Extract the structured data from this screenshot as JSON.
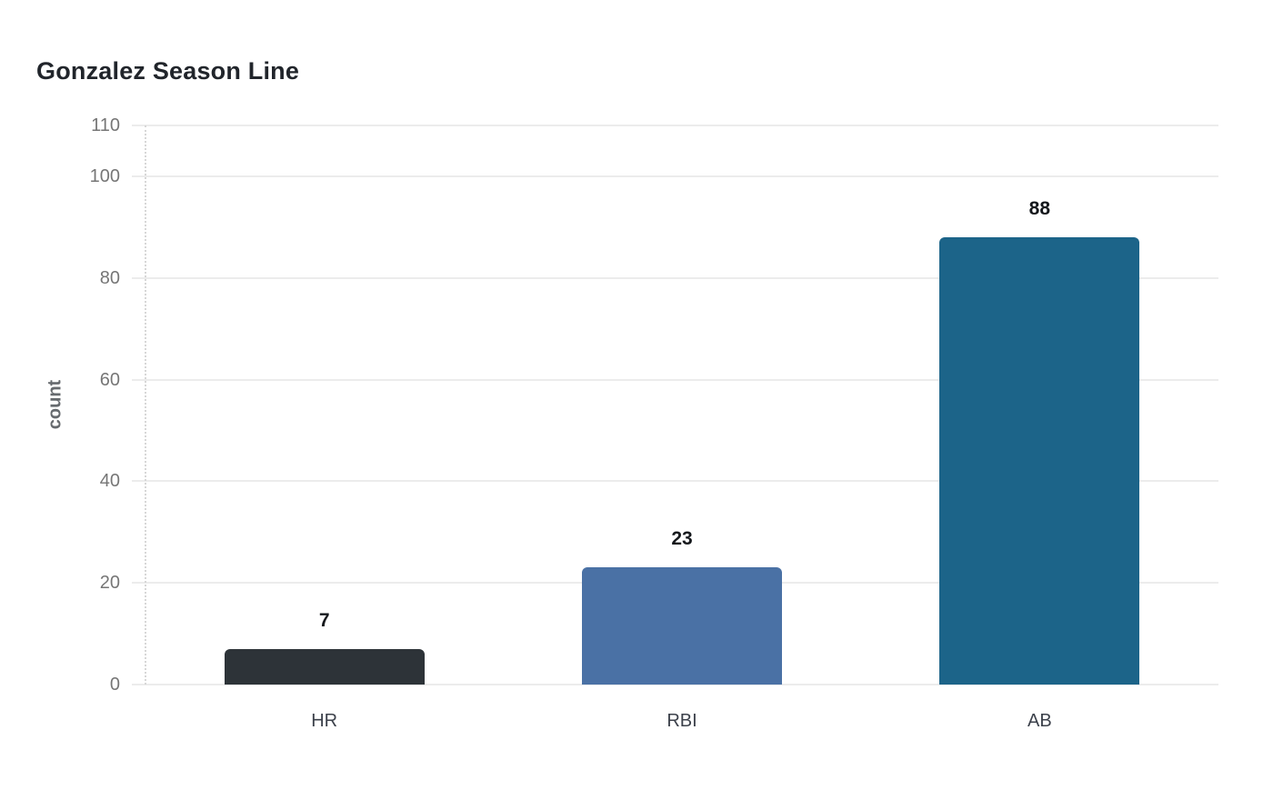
{
  "chart_data": {
    "type": "bar",
    "title": "Gonzalez Season Line",
    "categories": [
      "HR",
      "RBI",
      "AB"
    ],
    "values": [
      7,
      23,
      88
    ],
    "value_labels": [
      "7",
      "23",
      "88"
    ],
    "bar_colors": [
      "#2d3338",
      "#4a71a5",
      "#1c6489"
    ],
    "xlabel": "",
    "ylabel": "count",
    "ylim": [
      0,
      110
    ],
    "yticks": [
      0,
      20,
      40,
      60,
      80,
      100,
      110
    ],
    "grid": "horizontal",
    "legend": "none",
    "colors": {
      "background": "#ffffff",
      "gridline": "#ececec",
      "axis_dotted_line": "#d7d7d7",
      "y_tick_label": "#767676",
      "y_axis_title": "#666a6e",
      "x_tick_label": "#3c414b",
      "value_label": "#15181c",
      "title": "#21252b"
    }
  }
}
